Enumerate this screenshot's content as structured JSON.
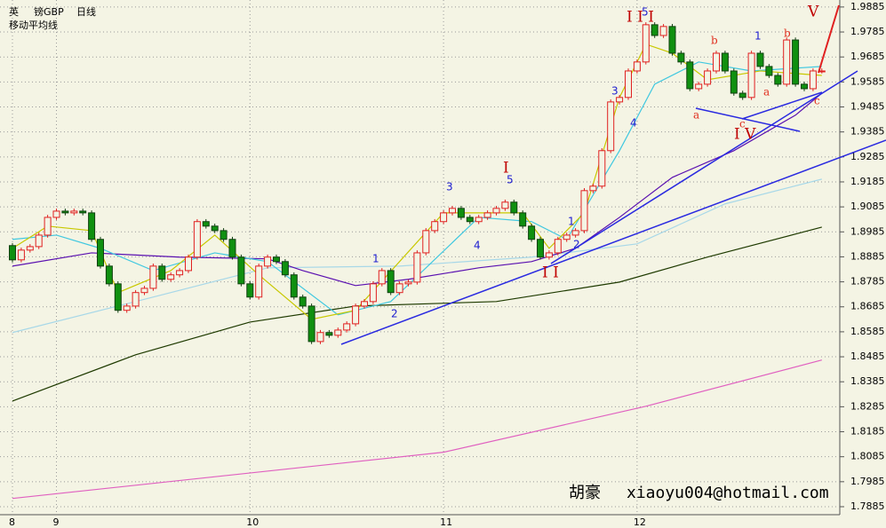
{
  "header": {
    "symbol": "英",
    "name": "镑GBP",
    "period": "日线",
    "indicator": "移动平均线"
  },
  "watermark": {
    "author": "胡豪",
    "email": "xiaoyu004@hotmail.com"
  },
  "chart_data": {
    "type": "candlestick",
    "up_color": "#e02020",
    "down_color": "#109010",
    "grid": true,
    "ylim": [
      1.7853,
      1.9913
    ],
    "yticks": [
      1.9885,
      1.9785,
      1.9685,
      1.9585,
      1.9485,
      1.9385,
      1.9285,
      1.9185,
      1.9085,
      1.8985,
      1.8885,
      1.8785,
      1.8685,
      1.8585,
      1.8485,
      1.8385,
      1.8285,
      1.8185,
      1.8085,
      1.7985,
      1.7885
    ],
    "categories": [
      "8",
      null,
      null,
      null,
      null,
      "9",
      null,
      null,
      null,
      null,
      null,
      null,
      null,
      null,
      null,
      null,
      null,
      null,
      null,
      null,
      null,
      null,
      null,
      null,
      null,
      null,
      null,
      "10",
      null,
      null,
      null,
      null,
      null,
      null,
      null,
      null,
      null,
      null,
      null,
      null,
      null,
      null,
      null,
      null,
      null,
      null,
      null,
      null,
      null,
      "11",
      null,
      null,
      null,
      null,
      null,
      null,
      null,
      null,
      null,
      null,
      null,
      null,
      null,
      null,
      null,
      null,
      null,
      null,
      null,
      null,
      null,
      "12",
      null,
      null,
      null,
      null,
      null,
      null,
      null,
      null,
      null,
      null,
      null,
      null,
      null,
      null,
      null,
      null,
      null,
      null,
      null,
      null,
      null
    ],
    "open": [
      1.893,
      1.8873,
      1.8912,
      1.8926,
      1.8972,
      1.9043,
      1.9068,
      1.9061,
      1.9068,
      1.9061,
      1.8955,
      1.8848,
      1.8777,
      1.8671,
      1.8688,
      1.8742,
      1.8759,
      1.8848,
      1.8795,
      1.8813,
      1.883,
      1.8884,
      1.9026,
      1.9008,
      1.899,
      1.8955,
      1.8884,
      1.8777,
      1.8724,
      1.8848,
      1.8884,
      1.8866,
      1.8813,
      1.8724,
      1.8688,
      1.8546,
      1.8582,
      1.8571,
      1.8592,
      1.8617,
      1.8688,
      1.8706,
      1.8777,
      1.883,
      1.8742,
      1.8777,
      1.8784,
      1.8901,
      1.899,
      1.9026,
      1.9061,
      1.9079,
      1.9043,
      1.9026,
      1.9043,
      1.9061,
      1.9079,
      1.9104,
      1.9061,
      1.9008,
      1.8955,
      1.8884,
      1.8901,
      1.8955,
      1.8972,
      1.899,
      1.915,
      1.9168,
      1.931,
      1.9505,
      1.9523,
      1.9629,
      1.9665,
      1.9814,
      1.9771,
      1.9807,
      1.97,
      1.9665,
      1.9558,
      1.9576,
      1.9629,
      1.97,
      1.9629,
      1.954,
      1.9523,
      1.97,
      1.9647,
      1.9611,
      1.9576,
      1.9753,
      1.9576,
      1.9558,
      1.9629
    ],
    "high": [
      1.894,
      1.8922,
      1.8936,
      1.8982,
      1.9053,
      1.9078,
      1.9078,
      1.9078,
      1.9078,
      1.9071,
      1.8965,
      1.8858,
      1.8787,
      1.8698,
      1.8752,
      1.8769,
      1.8858,
      1.8858,
      1.8823,
      1.884,
      1.8894,
      1.9036,
      1.9036,
      1.9018,
      1.9,
      1.8965,
      1.8894,
      1.8787,
      1.8858,
      1.8894,
      1.8894,
      1.8876,
      1.8823,
      1.8734,
      1.8698,
      1.8592,
      1.8592,
      1.8602,
      1.8627,
      1.8698,
      1.8716,
      1.8787,
      1.884,
      1.884,
      1.8787,
      1.8794,
      1.8911,
      1.9,
      1.9036,
      1.9071,
      1.9089,
      1.9089,
      1.9053,
      1.9053,
      1.9071,
      1.9089,
      1.9114,
      1.9114,
      1.9071,
      1.9018,
      1.8965,
      1.8911,
      1.8965,
      1.8982,
      1.9,
      1.916,
      1.9178,
      1.932,
      1.9515,
      1.9533,
      1.9639,
      1.9675,
      1.9824,
      1.9824,
      1.9817,
      1.9817,
      1.971,
      1.9675,
      1.9586,
      1.9639,
      1.971,
      1.971,
      1.9639,
      1.955,
      1.971,
      1.971,
      1.9657,
      1.9621,
      1.9763,
      1.9763,
      1.9586,
      1.9639,
      1.9639
    ],
    "low": [
      1.8863,
      1.8863,
      1.8902,
      1.8916,
      1.8962,
      1.9033,
      1.9051,
      1.9051,
      1.9051,
      1.8945,
      1.8838,
      1.8767,
      1.8661,
      1.8661,
      1.8678,
      1.8732,
      1.8749,
      1.8785,
      1.8785,
      1.8803,
      1.882,
      1.8874,
      1.8998,
      1.898,
      1.8945,
      1.8874,
      1.8767,
      1.8714,
      1.8714,
      1.8838,
      1.8856,
      1.8803,
      1.8714,
      1.8678,
      1.8536,
      1.8536,
      1.8561,
      1.8561,
      1.8582,
      1.8607,
      1.8678,
      1.8696,
      1.8767,
      1.8732,
      1.8732,
      1.8767,
      1.8774,
      1.8891,
      1.898,
      1.9016,
      1.9051,
      1.9033,
      1.9016,
      1.9016,
      1.9033,
      1.9051,
      1.9069,
      1.9051,
      1.8998,
      1.8945,
      1.8874,
      1.8874,
      1.8891,
      1.8945,
      1.8962,
      1.898,
      1.914,
      1.9158,
      1.93,
      1.9495,
      1.9513,
      1.9619,
      1.9655,
      1.9761,
      1.9761,
      1.969,
      1.9655,
      1.9548,
      1.9548,
      1.9566,
      1.9619,
      1.9619,
      1.953,
      1.9513,
      1.9513,
      1.9637,
      1.9601,
      1.9566,
      1.9566,
      1.9566,
      1.9548,
      1.9548,
      1.9619
    ],
    "close": [
      1.8873,
      1.8912,
      1.8926,
      1.8972,
      1.9043,
      1.9068,
      1.9061,
      1.9068,
      1.9061,
      1.8955,
      1.8848,
      1.8777,
      1.8671,
      1.8688,
      1.8742,
      1.8759,
      1.8848,
      1.8795,
      1.8813,
      1.883,
      1.8884,
      1.9026,
      1.9008,
      1.899,
      1.8955,
      1.8884,
      1.8777,
      1.8724,
      1.8848,
      1.8884,
      1.8866,
      1.8813,
      1.8724,
      1.8688,
      1.8546,
      1.8582,
      1.8571,
      1.8592,
      1.8617,
      1.8688,
      1.8706,
      1.8777,
      1.883,
      1.8742,
      1.8777,
      1.8784,
      1.8901,
      1.899,
      1.9026,
      1.9061,
      1.9079,
      1.9043,
      1.9026,
      1.9043,
      1.9061,
      1.9079,
      1.9104,
      1.9061,
      1.9008,
      1.8955,
      1.8884,
      1.8901,
      1.8955,
      1.8972,
      1.899,
      1.915,
      1.9168,
      1.931,
      1.9505,
      1.9523,
      1.9629,
      1.9665,
      1.9814,
      1.9771,
      1.9807,
      1.97,
      1.9665,
      1.9558,
      1.9576,
      1.9629,
      1.97,
      1.9629,
      1.954,
      1.9523,
      1.97,
      1.9647,
      1.9611,
      1.9576,
      1.9753,
      1.9576,
      1.9558,
      1.9629,
      1.9629
    ],
    "series": [
      {
        "color": "#e060c0",
        "x": [
          0,
          49,
          72,
          92
        ],
        "values": [
          1.7918,
          1.8103,
          1.8287,
          1.8472
        ]
      },
      {
        "color": "#1e3a00",
        "x": [
          0,
          14,
          27,
          39,
          55,
          69,
          79,
          92
        ],
        "values": [
          1.8308,
          1.8493,
          1.8624,
          1.8688,
          1.8706,
          1.8784,
          1.8884,
          1.9004
        ]
      },
      {
        "color": "#a8d8e8",
        "x": [
          0,
          14,
          29,
          44,
          59,
          71,
          81,
          92
        ],
        "values": [
          1.8582,
          1.8706,
          1.8841,
          1.8848,
          1.8884,
          1.8937,
          1.9097,
          1.9196
        ]
      },
      {
        "color": "#5a10b0",
        "x": [
          0,
          9,
          19,
          29,
          33,
          39,
          45,
          53,
          59,
          64,
          69,
          75,
          82,
          89,
          92
        ],
        "values": [
          1.8848,
          1.8901,
          1.8884,
          1.8877,
          1.883,
          1.877,
          1.8795,
          1.8841,
          1.8866,
          1.8919,
          1.9043,
          1.9203,
          1.931,
          1.9452,
          1.954
        ]
      },
      {
        "color": "#40c8e0",
        "x": [
          0,
          5,
          10,
          16,
          23,
          29,
          37,
          43,
          53,
          59,
          63,
          69,
          73,
          78,
          84,
          92
        ],
        "values": [
          1.8955,
          1.8972,
          1.8919,
          1.883,
          1.8901,
          1.8866,
          1.8653,
          1.8706,
          1.9043,
          1.9026,
          1.8955,
          1.931,
          1.9576,
          1.9665,
          1.9629,
          1.9647
        ]
      },
      {
        "color": "#c8c800",
        "x": [
          0,
          4,
          9,
          12,
          18,
          23,
          28,
          34,
          39,
          49,
          58,
          61,
          65,
          69,
          72,
          75,
          79,
          85,
          92
        ],
        "values": [
          1.8919,
          1.9008,
          1.899,
          1.8742,
          1.883,
          1.8972,
          1.8813,
          1.8635,
          1.8671,
          1.9061,
          1.9061,
          1.8919,
          1.9061,
          1.9523,
          1.9736,
          1.97,
          1.9594,
          1.9629,
          1.9611
        ]
      }
    ],
    "annotations": [
      {
        "text": "I",
        "color": "#c00000"
      },
      {
        "text": "I I",
        "color": "#c00000"
      },
      {
        "text": "I I I",
        "color": "#c00000"
      },
      {
        "text": "I V",
        "color": "#c00000"
      },
      {
        "text": "V",
        "color": "#c00000"
      },
      {
        "text": "1",
        "color": "#2020d0"
      },
      {
        "text": "2",
        "color": "#2020d0"
      },
      {
        "text": "3",
        "color": "#2020d0"
      },
      {
        "text": "4",
        "color": "#2020d0"
      },
      {
        "text": "5",
        "color": "#2020d0"
      },
      {
        "text": "1",
        "color": "#2020d0"
      },
      {
        "text": "2",
        "color": "#2020d0"
      },
      {
        "text": "3",
        "color": "#2020d0"
      },
      {
        "text": "4",
        "color": "#2020d0"
      },
      {
        "text": "5",
        "color": "#2020d0"
      },
      {
        "text": "1",
        "color": "#2020d0"
      },
      {
        "text": "a",
        "color": "#e03020"
      },
      {
        "text": "b",
        "color": "#e03020"
      },
      {
        "text": "c",
        "color": "#e03020"
      },
      {
        "text": "a",
        "color": "#e03020"
      },
      {
        "text": "b",
        "color": "#e03020"
      },
      {
        "text": "c",
        "color": "#e03020"
      }
    ]
  }
}
